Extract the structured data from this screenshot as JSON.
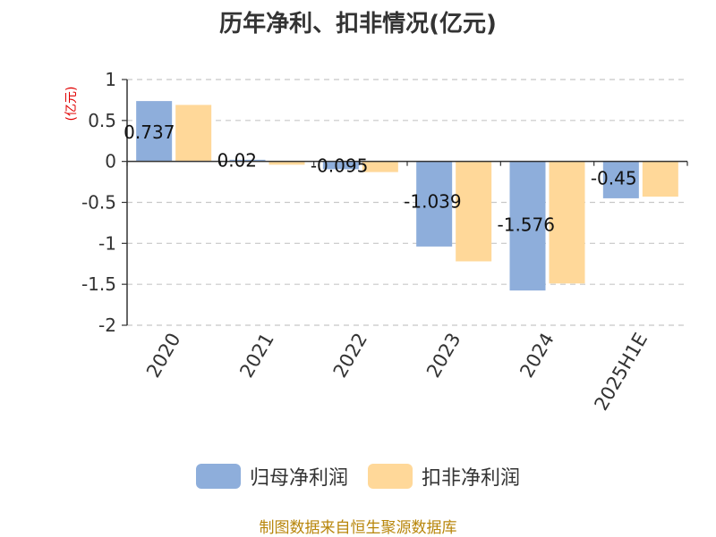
{
  "chart_data": {
    "type": "bar",
    "title": "历年净利、扣非情况(亿元)",
    "ylabel": "(亿元)",
    "categories": [
      "2020",
      "2021",
      "2022",
      "2023",
      "2024",
      "2025H1E"
    ],
    "series": [
      {
        "name": "归母净利润",
        "color": "#8eaedb",
        "values": [
          0.737,
          0.02,
          -0.095,
          -1.039,
          -1.576,
          -0.45
        ],
        "labels": [
          "0.737",
          "0.02",
          "-0.095",
          "-1.039",
          "-1.576",
          "-0.45"
        ]
      },
      {
        "name": "扣非净利润",
        "color": "#ffd899",
        "values": [
          0.69,
          -0.04,
          -0.13,
          -1.22,
          -1.49,
          -0.43
        ]
      }
    ],
    "ylim": [
      -2,
      1
    ],
    "yticks": [
      1,
      0.5,
      0,
      -0.5,
      -1,
      -1.5,
      -2
    ],
    "grid": true,
    "legend_position": "bottom"
  },
  "footer": "制图数据来自恒生聚源数据库"
}
